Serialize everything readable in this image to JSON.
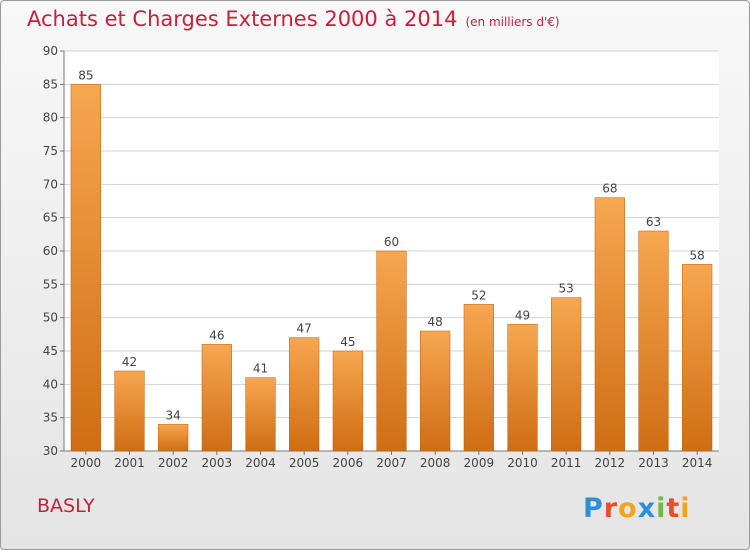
{
  "title": "Achats et Charges Externes 2000 à 2014",
  "subtitle": "(en milliers d'€)",
  "commune": "BASLY",
  "logo_text": "Proxiti",
  "colors": {
    "title": "#c8203c",
    "bar_top": "#f6a750",
    "bar_bottom": "#cf6d14",
    "grid": "#d2d2d2",
    "axis": "#777777"
  },
  "chart_data": {
    "type": "bar",
    "title": "Achats et Charges Externes 2000 à 2014",
    "subtitle": "(en milliers d'€)",
    "categories": [
      "2000",
      "2001",
      "2002",
      "2003",
      "2004",
      "2005",
      "2006",
      "2007",
      "2008",
      "2009",
      "2010",
      "2011",
      "2012",
      "2013",
      "2014"
    ],
    "values": [
      85,
      42,
      34,
      46,
      41,
      47,
      45,
      60,
      48,
      52,
      49,
      53,
      68,
      63,
      58
    ],
    "ylim": [
      30,
      90
    ],
    "yticks": [
      30,
      35,
      40,
      45,
      50,
      55,
      60,
      65,
      70,
      75,
      80,
      85,
      90
    ],
    "grid": true,
    "data_labels": true
  }
}
